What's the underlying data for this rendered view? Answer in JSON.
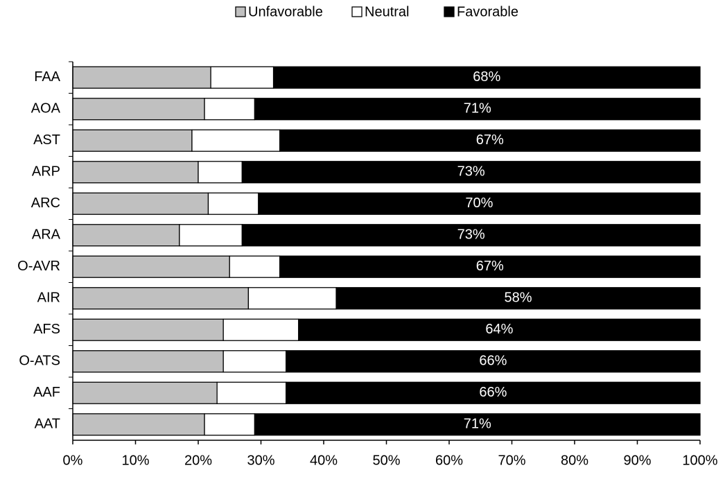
{
  "chart_data": {
    "type": "stacked_barh",
    "categories": [
      "FAA",
      "AOA",
      "AST",
      "ARP",
      "ARC",
      "ARA",
      "O-AVR",
      "AIR",
      "AFS",
      "O-ATS",
      "AAF",
      "AAT"
    ],
    "series": [
      {
        "name": "Unfavorable",
        "color": "#c0c0c0",
        "values": [
          22,
          21,
          19,
          20,
          21.6,
          17,
          25,
          28,
          24,
          24,
          23,
          21
        ]
      },
      {
        "name": "Neutral",
        "color": "#ffffff",
        "values": [
          10,
          8,
          14,
          7,
          8,
          10,
          8,
          14,
          12,
          10,
          11,
          8
        ]
      },
      {
        "name": "Favorable",
        "color": "#000000",
        "values": [
          68,
          71,
          67,
          73,
          70.4,
          73,
          67,
          58,
          64,
          66,
          66,
          71
        ],
        "value_labels": [
          "68%",
          "71%",
          "67%",
          "73%",
          "70%",
          "73%",
          "67%",
          "58%",
          "64%",
          "66%",
          "66%",
          "71%"
        ]
      }
    ],
    "xlim": [
      0,
      100
    ],
    "xticks": [
      {
        "value": 0,
        "label": "0%"
      },
      {
        "value": 10,
        "label": "10%"
      },
      {
        "value": 20,
        "label": "20%"
      },
      {
        "value": 30,
        "label": "30%"
      },
      {
        "value": 40,
        "label": "40%"
      },
      {
        "value": 50,
        "label": "50%"
      },
      {
        "value": 60,
        "label": "60%"
      },
      {
        "value": 70,
        "label": "70%"
      },
      {
        "value": 80,
        "label": "80%"
      },
      {
        "value": 90,
        "label": "90%"
      },
      {
        "value": 100,
        "label": "100%"
      }
    ],
    "legend": "top"
  }
}
